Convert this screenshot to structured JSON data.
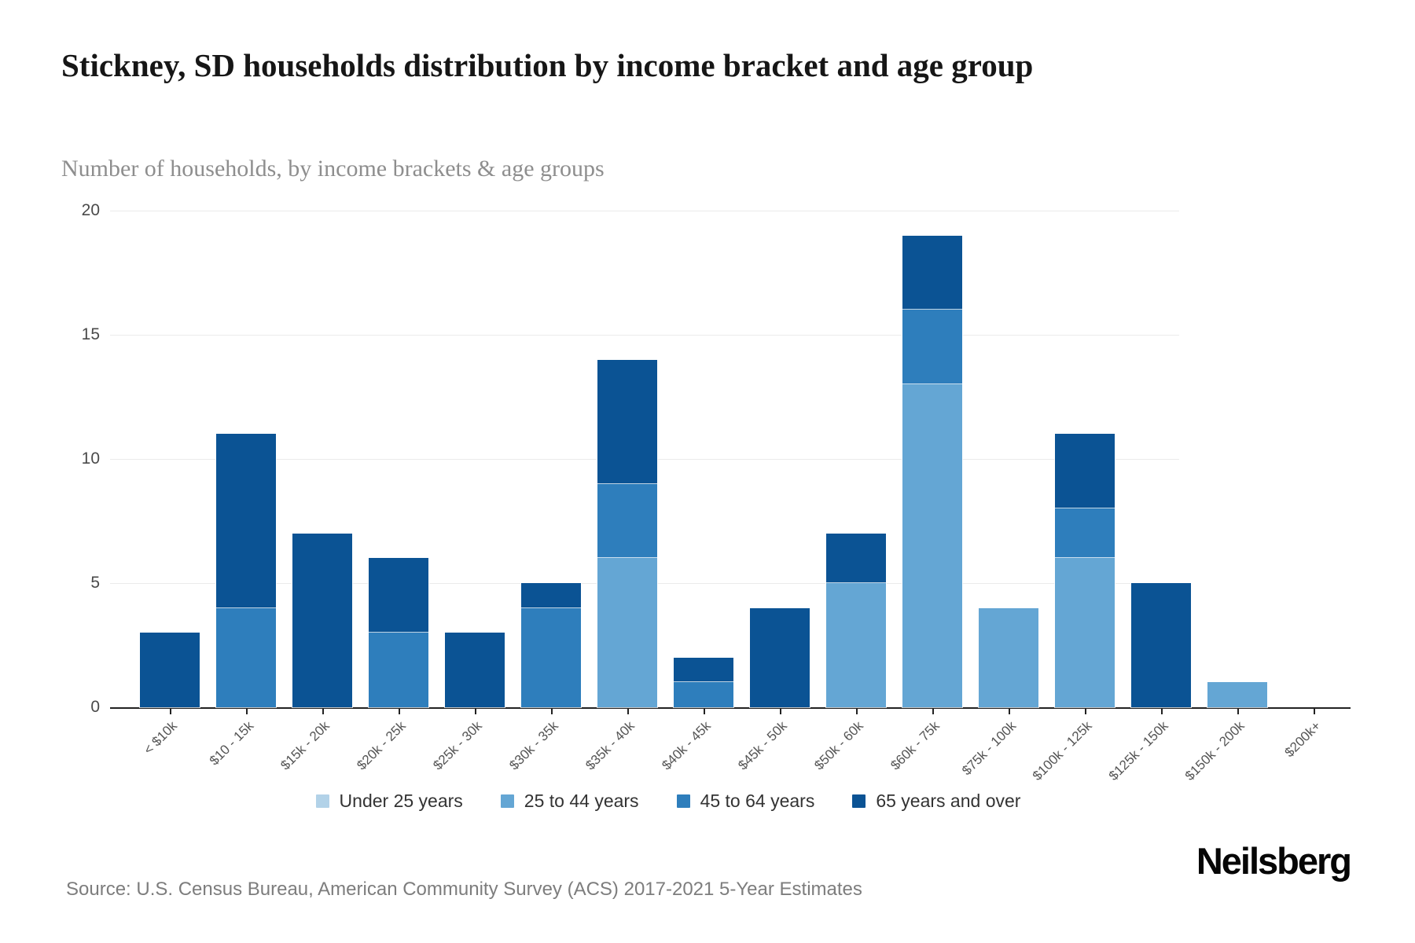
{
  "chart_data": {
    "type": "bar",
    "stacked": true,
    "title": "Stickney, SD households distribution by income bracket and age group",
    "subtitle": "Number of households, by income brackets & age groups",
    "categories": [
      "< $10k",
      "$10 - 15k",
      "$15k - 20k",
      "$20k - 25k",
      "$25k - 30k",
      "$30k - 35k",
      "$35k - 40k",
      "$40k - 45k",
      "$45k - 50k",
      "$50k - 60k",
      "$60k - 75k",
      "$75k - 100k",
      "$100k - 125k",
      "$125k - 150k",
      "$150k - 200k",
      "$200k+"
    ],
    "series": [
      {
        "name": "Under 25 years",
        "color": "#b2d2e8",
        "values": [
          0,
          0,
          0,
          0,
          0,
          0,
          0,
          0,
          0,
          0,
          0,
          0,
          0,
          0,
          0,
          0
        ]
      },
      {
        "name": "25 to 44 years",
        "color": "#64a6d4",
        "values": [
          0,
          0,
          0,
          0,
          0,
          0,
          6,
          0,
          0,
          5,
          13,
          4,
          6,
          0,
          1,
          0
        ]
      },
      {
        "name": "45 to 64 years",
        "color": "#2e7ebc",
        "values": [
          0,
          4,
          0,
          3,
          0,
          4,
          3,
          1,
          0,
          0,
          3,
          0,
          2,
          0,
          0,
          0
        ]
      },
      {
        "name": "65 years and over",
        "color": "#0b5394",
        "values": [
          3,
          7,
          7,
          3,
          3,
          1,
          5,
          1,
          4,
          2,
          3,
          0,
          3,
          5,
          0,
          0
        ]
      }
    ],
    "totals": [
      3,
      11,
      7,
      6,
      3,
      5,
      14,
      2,
      4,
      7,
      19,
      4,
      11,
      5,
      1,
      0
    ],
    "xlabel": "",
    "ylabel": "",
    "ylim": [
      0,
      20
    ],
    "yticks": [
      0,
      5,
      10,
      15,
      20
    ],
    "grid": "horizontal",
    "legend_position": "bottom"
  },
  "footer": {
    "source": "Source: U.S. Census Bureau, American Community Survey (ACS) 2017-2021 5-Year Estimates",
    "brand": "Neilsberg"
  }
}
